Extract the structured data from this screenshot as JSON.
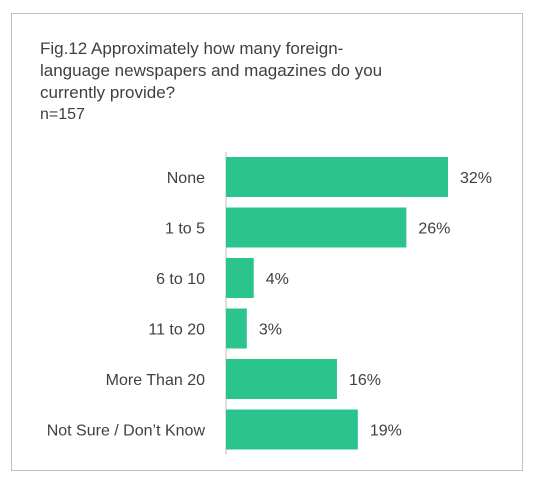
{
  "chart_data": {
    "type": "bar",
    "orientation": "horizontal",
    "title": "Fig.12 Approximately how many foreign-language newspapers and magazines do you currently provide?",
    "subtitle": "n=157",
    "categories": [
      "None",
      "1 to 5",
      "6 to 10",
      "11 to 20",
      "More Than 20",
      "Not Sure / Don’t Know"
    ],
    "values": [
      32,
      26,
      4,
      3,
      16,
      19
    ],
    "value_labels": [
      "32%",
      "26%",
      "4%",
      "3%",
      "16%",
      "19%"
    ],
    "unit": "%",
    "xlim": [
      0,
      32
    ],
    "bar_color": "#2bc48c",
    "axis_color": "#bfbfbf",
    "grid": false,
    "legend": "none"
  }
}
